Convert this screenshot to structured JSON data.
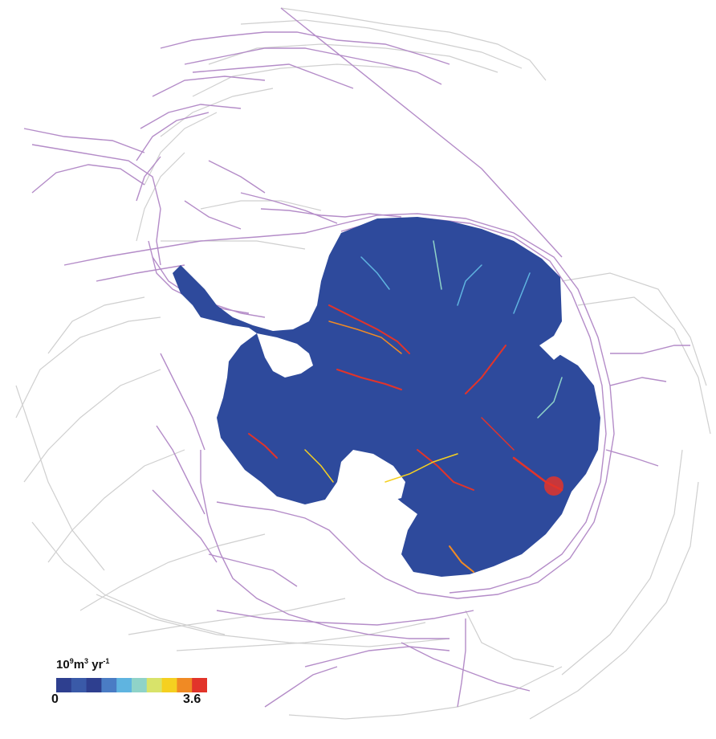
{
  "map": {
    "description_colors": {
      "ice": "#2e4a9c",
      "track_purple": "#b48cc8",
      "track_gray": "#c8c8c8",
      "shelf": "#ffffff"
    }
  },
  "legend": {
    "title_base": "10",
    "title_exp1": "9",
    "title_unit": "m",
    "title_exp2": "3",
    "title_unit2": " yr",
    "title_exp3": "-1",
    "min_label": "0",
    "max_label": "3.6",
    "colors": [
      "#2e3f8f",
      "#3a5aa8",
      "#2e3f8f",
      "#4a7cc4",
      "#5fb4e0",
      "#8fd3c8",
      "#d8e36a",
      "#f5d020",
      "#f08a24",
      "#e2342a"
    ]
  }
}
